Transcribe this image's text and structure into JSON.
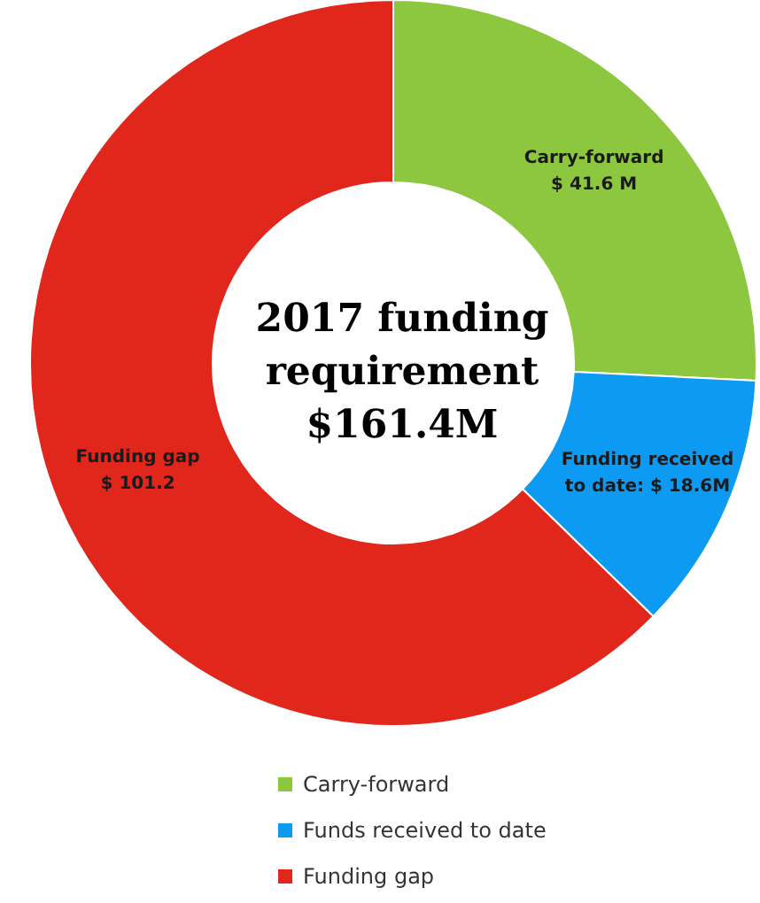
{
  "chart_data": {
    "type": "donut",
    "title": "2017 funding\nrequirement\n$161.4M",
    "categories": [
      "Carry-forward",
      "Funds received to date",
      "Funding gap"
    ],
    "values": [
      41.6,
      18.6,
      101.2
    ],
    "colors": [
      "#8dc63f",
      "#0c9af2",
      "#e1261c"
    ],
    "value_labels": [
      "Carry-forward\n$ 41.6 M",
      "Funding received\nto date: $ 18.6M",
      "Funding gap\n$ 101.2"
    ],
    "legend": "bottom"
  }
}
